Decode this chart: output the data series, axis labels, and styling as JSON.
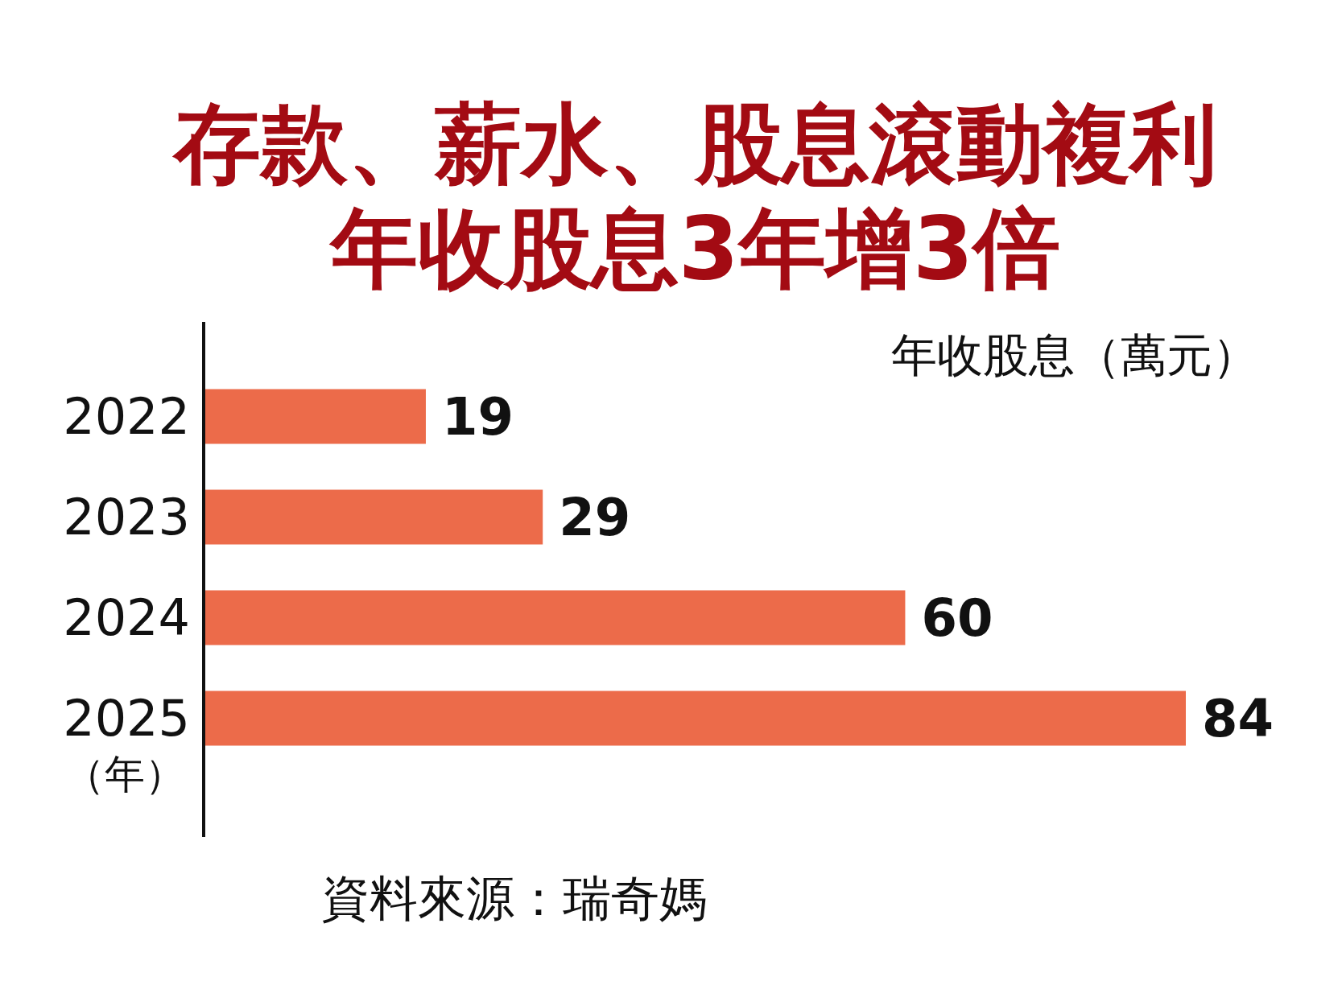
{
  "chart_data": {
    "type": "bar",
    "orientation": "horizontal",
    "title": "存款、薪水、股息滾動複利",
    "subtitle": "年收股息3年增3倍",
    "xlabel": "年收股息（萬元）",
    "ylabel": "（年）",
    "categories": [
      "2022",
      "2023",
      "2024",
      "2025"
    ],
    "values": [
      19,
      29,
      60,
      84
    ],
    "color": "#ec6b4a",
    "data_labels": true,
    "annotations": [
      "資料來源：瑞奇媽"
    ]
  }
}
